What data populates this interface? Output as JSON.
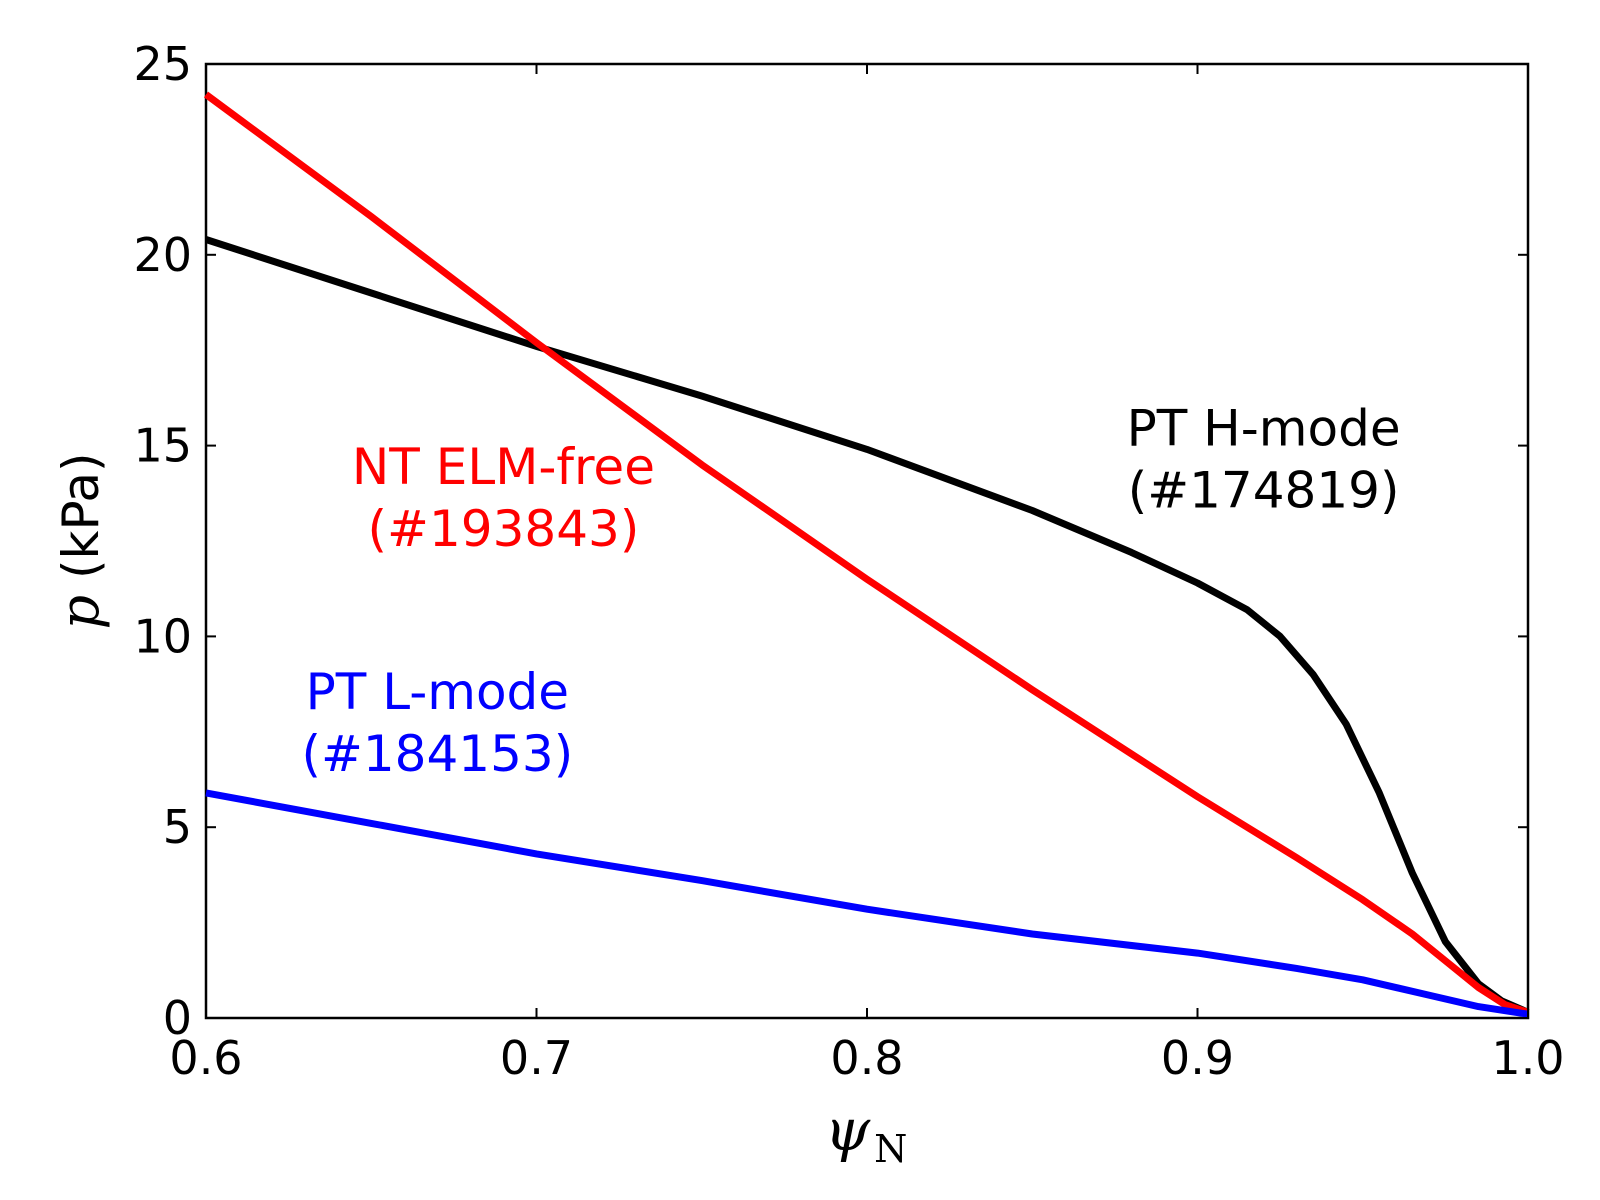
{
  "chart_data": {
    "type": "line",
    "title": "",
    "xlabel": {
      "symbol": "ψ",
      "subscript": "N"
    },
    "ylabel": {
      "symbol": "p",
      "unit": "(kPa)"
    },
    "xlim": [
      0.6,
      1.0
    ],
    "ylim": [
      0,
      25
    ],
    "xticks": [
      0.6,
      0.7,
      0.8,
      0.9,
      1.0
    ],
    "xtick_labels": [
      "0.6",
      "0.7",
      "0.8",
      "0.9",
      "1.0"
    ],
    "yticks": [
      0,
      5,
      10,
      15,
      20,
      25
    ],
    "ytick_labels": [
      "0",
      "5",
      "10",
      "15",
      "20",
      "25"
    ],
    "grid": false,
    "series": [
      {
        "name": "PT H-mode (#174819)",
        "color": "#000000",
        "x": [
          0.6,
          0.65,
          0.7,
          0.75,
          0.8,
          0.85,
          0.88,
          0.9,
          0.915,
          0.925,
          0.935,
          0.945,
          0.955,
          0.965,
          0.975,
          0.985,
          0.992,
          1.0
        ],
        "y": [
          20.4,
          19.0,
          17.6,
          16.3,
          14.9,
          13.3,
          12.2,
          11.4,
          10.7,
          10.0,
          9.0,
          7.7,
          5.9,
          3.8,
          2.0,
          0.9,
          0.45,
          0.15
        ]
      },
      {
        "name": "NT ELM-free (#193843)",
        "color": "#ff0000",
        "x": [
          0.6,
          0.65,
          0.7,
          0.75,
          0.8,
          0.85,
          0.9,
          0.93,
          0.95,
          0.965,
          0.975,
          0.985,
          0.993,
          1.0
        ],
        "y": [
          24.2,
          21.0,
          17.7,
          14.5,
          11.5,
          8.6,
          5.8,
          4.2,
          3.1,
          2.2,
          1.5,
          0.8,
          0.35,
          0.15
        ]
      },
      {
        "name": "PT L-mode (#184153)",
        "color": "#0000ff",
        "x": [
          0.6,
          0.65,
          0.7,
          0.75,
          0.8,
          0.85,
          0.9,
          0.93,
          0.95,
          0.97,
          0.985,
          1.0
        ],
        "y": [
          5.9,
          5.1,
          4.3,
          3.6,
          2.85,
          2.2,
          1.7,
          1.3,
          1.0,
          0.6,
          0.3,
          0.1
        ]
      }
    ],
    "annotations": [
      {
        "lines": [
          "PT H-mode",
          "(#174819)"
        ],
        "color": "#000000",
        "x": 0.92,
        "y": 15.0
      },
      {
        "lines": [
          "NT ELM-free",
          "(#193843)"
        ],
        "color": "#ff0000",
        "x": 0.69,
        "y": 14.0
      },
      {
        "lines": [
          "PT L-mode",
          "(#184153)"
        ],
        "color": "#0000ff",
        "x": 0.67,
        "y": 8.1
      }
    ]
  }
}
